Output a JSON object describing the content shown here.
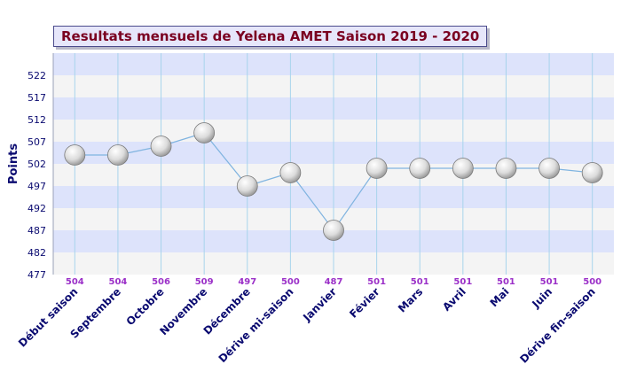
{
  "chart_data": {
    "type": "line",
    "title": "Resultats mensuels de Yelena AMET Saison 2019 - 2020",
    "xlabel": "",
    "ylabel": "Points",
    "categories": [
      "Début saison",
      "Septembre",
      "Octobre",
      "Novembre",
      "Décembre",
      "Dérive mi-saison",
      "Janvier",
      "Févier",
      "Mars",
      "Avril",
      "Mai",
      "Juin",
      "Dérive fin-saison"
    ],
    "values": [
      504,
      504,
      506,
      509,
      497,
      500,
      487,
      501,
      501,
      501,
      501,
      501,
      500
    ],
    "yticks": [
      477,
      482,
      487,
      492,
      497,
      502,
      507,
      512,
      517,
      522
    ],
    "ylim": [
      477,
      527
    ],
    "grid": true,
    "legend": "none",
    "colors": {
      "line": "#80b4e0",
      "band_blue": "#dde3fb",
      "band_grey": "#f4f4f4",
      "vgrid": "#a8d4ec",
      "value_label": "#9b30c8",
      "category_label": "#0a0a70",
      "tick_label": "#0a0a70",
      "title_text": "#7a0020",
      "title_bg": "#e6e6fa"
    }
  }
}
